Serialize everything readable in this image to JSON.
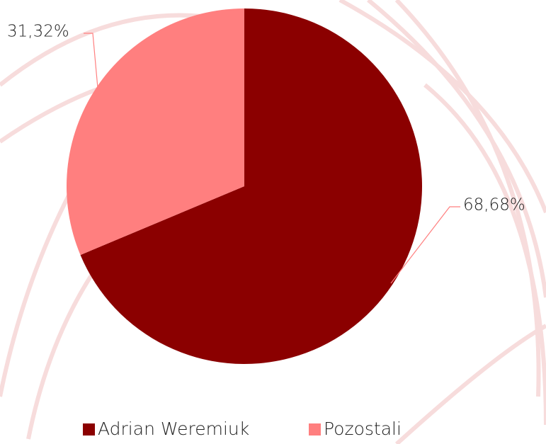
{
  "chart_data": {
    "type": "pie",
    "categories": [
      "Adrian Weremiuk",
      "Pozostali"
    ],
    "values": [
      68.68,
      31.32
    ],
    "value_labels": [
      "68,68%",
      "31,32%"
    ],
    "colors": [
      "#8b0000",
      "#ff7f7f"
    ],
    "legend": "bottom"
  }
}
